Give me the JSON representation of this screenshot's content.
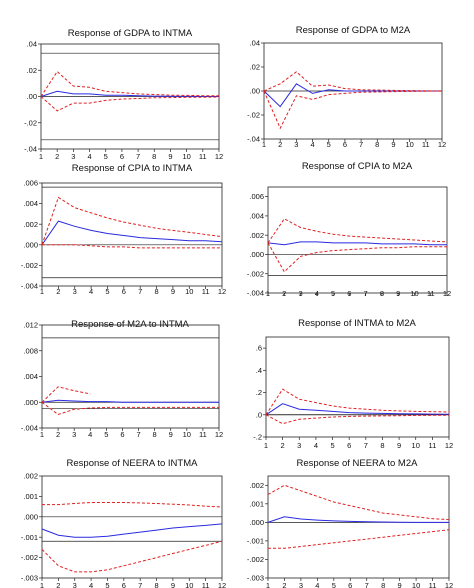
{
  "chart_data": [
    {
      "type": "line",
      "title": "Response of GDPA to INTMA",
      "x": [
        1,
        2,
        3,
        4,
        5,
        6,
        7,
        8,
        9,
        10,
        11,
        12
      ],
      "ylim": [
        -0.04,
        0.04
      ],
      "yticks": [
        ".04",
        ".02",
        ".00",
        "-.02",
        "-.04"
      ],
      "hlines": [
        0.033,
        -0.033
      ],
      "series": [
        {
          "role": "response",
          "color": "#2a2ae0",
          "values": [
            0.0,
            0.004,
            0.002,
            0.002,
            0.001,
            0.001,
            0.0005,
            0.0003,
            0.0002,
            0.0001,
            0.0,
            0.0
          ]
        },
        {
          "role": "upper band",
          "color": "#e02020",
          "values": [
            0.0,
            0.019,
            0.008,
            0.007,
            0.004,
            0.003,
            0.002,
            0.0015,
            0.001,
            0.0008,
            0.0006,
            0.0005
          ]
        },
        {
          "role": "lower band",
          "color": "#e02020",
          "values": [
            0.0,
            -0.011,
            -0.005,
            -0.005,
            -0.003,
            -0.002,
            -0.0015,
            -0.001,
            -0.0008,
            -0.0006,
            -0.0005,
            -0.0004
          ]
        }
      ]
    },
    {
      "type": "line",
      "title": "Response of GDPA to M2A",
      "x": [
        1,
        2,
        3,
        4,
        5,
        6,
        7,
        8,
        9,
        10,
        11,
        12
      ],
      "ylim": [
        -0.04,
        0.04
      ],
      "yticks": [
        ".04",
        ".02",
        ".00",
        "-.02",
        "-.04"
      ],
      "hlines": [],
      "series": [
        {
          "role": "response",
          "color": "#2a2ae0",
          "values": [
            0.0,
            -0.013,
            0.006,
            -0.002,
            0.001,
            0.0,
            0.0,
            0.0,
            0.0,
            0.0,
            0.0,
            0.0
          ]
        },
        {
          "role": "upper band",
          "color": "#e02020",
          "values": [
            0.0,
            0.006,
            0.016,
            0.004,
            0.005,
            0.002,
            0.001,
            0.0008,
            0.0005,
            0.0003,
            0.0002,
            0.0001
          ]
        },
        {
          "role": "lower band",
          "color": "#e02020",
          "values": [
            0.0,
            -0.031,
            -0.004,
            -0.007,
            -0.003,
            -0.002,
            -0.001,
            -0.0008,
            -0.0005,
            -0.0003,
            -0.0002,
            -0.0001
          ]
        }
      ]
    },
    {
      "type": "line",
      "title": "Response of CPIA to INTMA",
      "x": [
        1,
        2,
        3,
        4,
        5,
        6,
        7,
        8,
        9,
        10,
        11,
        12
      ],
      "ylim": [
        -0.004,
        0.006
      ],
      "yticks": [
        ".006",
        ".004",
        ".002",
        ".000",
        "-.002",
        "-.004"
      ],
      "hlines": [
        0.0056,
        -0.0032
      ],
      "series": [
        {
          "role": "response",
          "color": "#2a2ae0",
          "values": [
            0.0,
            0.0023,
            0.0018,
            0.0014,
            0.0011,
            0.0009,
            0.0007,
            0.0006,
            0.0005,
            0.0004,
            0.0004,
            0.0003
          ]
        },
        {
          "role": "upper band",
          "color": "#e02020",
          "values": [
            0.0,
            0.0046,
            0.0036,
            0.0031,
            0.0026,
            0.0022,
            0.0019,
            0.0016,
            0.0014,
            0.0012,
            0.001,
            0.0008
          ]
        },
        {
          "role": "lower band",
          "color": "#e02020",
          "values": [
            0.0,
            0.0,
            0.0,
            -0.0001,
            -0.0002,
            -0.0002,
            -0.0003,
            -0.0003,
            -0.0003,
            -0.0003,
            -0.0003,
            -0.0003
          ]
        }
      ]
    },
    {
      "type": "line",
      "title": "Response of CPIA to M2A",
      "x": [
        1,
        2,
        3,
        4,
        5,
        6,
        7,
        8,
        9,
        10,
        11,
        12
      ],
      "ylim": [
        -0.004,
        0.007
      ],
      "yticks": [
        ".006",
        ".004",
        ".002",
        ".000",
        "-.002",
        "-.004"
      ],
      "hlines": [
        -0.0022
      ],
      "series": [
        {
          "role": "response",
          "color": "#2a2ae0",
          "values": [
            0.0012,
            0.001,
            0.0013,
            0.0013,
            0.0012,
            0.0012,
            0.0012,
            0.0011,
            0.0011,
            0.0011,
            0.001,
            0.001
          ]
        },
        {
          "role": "upper band",
          "color": "#e02020",
          "values": [
            0.0012,
            0.0037,
            0.0028,
            0.0024,
            0.0021,
            0.0019,
            0.0018,
            0.0017,
            0.0016,
            0.0015,
            0.0014,
            0.0013
          ]
        },
        {
          "role": "lower band",
          "color": "#e02020",
          "values": [
            0.0012,
            -0.0018,
            -0.0002,
            0.0002,
            0.0004,
            0.0005,
            0.0006,
            0.0007,
            0.0007,
            0.0008,
            0.0008,
            0.0008
          ]
        }
      ]
    },
    {
      "type": "line",
      "title": "Response of M2A to INTMA",
      "x": [
        1,
        2,
        3,
        4,
        5,
        6,
        7,
        8,
        9,
        10,
        11,
        12
      ],
      "ylim": [
        -0.004,
        0.012
      ],
      "yticks": [
        ".012",
        ".008",
        ".004",
        ".000",
        "-.004"
      ],
      "hlines": [
        0.01,
        -0.001
      ],
      "series": [
        {
          "role": "response",
          "color": "#2a2ae0",
          "values": [
            0.0,
            0.0003,
            0.0002,
            0.0001,
            0.0001,
            0.0,
            0.0,
            0.0,
            0.0,
            0.0,
            0.0,
            0.0
          ]
        },
        {
          "role": "upper band",
          "color": "#e02020",
          "values": [
            0.0,
            0.0024,
            0.0018,
            0.0013,
            null,
            null,
            null,
            null,
            null,
            null,
            null,
            null
          ]
        },
        {
          "role": "lower band",
          "color": "#e02020",
          "values": [
            0.0,
            -0.0019,
            -0.0011,
            -0.0009,
            -0.0008,
            -0.0008,
            -0.0008,
            -0.0008,
            -0.0008,
            -0.0008,
            -0.0008,
            -0.0008
          ]
        }
      ]
    },
    {
      "type": "line",
      "title": "Response of INTMA to M2A",
      "x": [
        1,
        2,
        3,
        4,
        5,
        6,
        7,
        8,
        9,
        10,
        11,
        12
      ],
      "ylim": [
        -0.2,
        0.7
      ],
      "yticks": [
        ".6",
        ".4",
        ".2",
        ".0",
        "-.2"
      ],
      "hlines": [
        0.0
      ],
      "series": [
        {
          "role": "response",
          "color": "#2a2ae0",
          "values": [
            0.0,
            0.1,
            0.05,
            0.04,
            0.03,
            0.02,
            0.015,
            0.012,
            0.01,
            0.008,
            0.006,
            0.005
          ]
        },
        {
          "role": "upper band",
          "color": "#e02020",
          "values": [
            0.0,
            0.23,
            0.14,
            0.11,
            0.08,
            0.06,
            0.05,
            0.04,
            0.035,
            0.03,
            0.028,
            0.025
          ]
        },
        {
          "role": "lower band",
          "color": "#e02020",
          "values": [
            0.0,
            -0.08,
            -0.04,
            -0.03,
            -0.02,
            -0.015,
            -0.012,
            -0.01,
            -0.008,
            -0.006,
            -0.005,
            -0.004
          ]
        }
      ]
    },
    {
      "type": "line",
      "title": "Response of NEERA to INTMA",
      "x": [
        1,
        2,
        3,
        4,
        5,
        6,
        7,
        8,
        9,
        10,
        11,
        12
      ],
      "ylim": [
        -0.003,
        0.002
      ],
      "yticks": [
        ".002",
        ".001",
        ".000",
        "-.001",
        "-.002",
        "-.003"
      ],
      "hlines": [
        -0.0012
      ],
      "series": [
        {
          "role": "response",
          "color": "#2a2ae0",
          "values": [
            -0.0006,
            -0.0009,
            -0.001,
            -0.001,
            -0.00095,
            -0.00085,
            -0.00075,
            -0.00065,
            -0.00055,
            -0.00048,
            -0.00042,
            -0.00035
          ]
        },
        {
          "role": "upper band",
          "color": "#e02020",
          "values": [
            0.0006,
            0.0006,
            0.00065,
            0.0007,
            0.0007,
            0.0007,
            0.00068,
            0.00065,
            0.00062,
            0.00058,
            0.00052,
            0.00048
          ]
        },
        {
          "role": "lower band",
          "color": "#e02020",
          "values": [
            -0.0016,
            -0.0024,
            -0.0027,
            -0.0027,
            -0.0026,
            -0.0024,
            -0.0022,
            -0.002,
            -0.0018,
            -0.0016,
            -0.0014,
            -0.0012
          ]
        }
      ]
    },
    {
      "type": "line",
      "title": "Response of NEERA to M2A",
      "x": [
        1,
        2,
        3,
        4,
        5,
        6,
        7,
        8,
        9,
        10,
        11,
        12
      ],
      "ylim": [
        -0.003,
        0.0025
      ],
      "yticks": [
        ".002",
        ".001",
        ".000",
        "-.001",
        "-.002",
        "-.003"
      ],
      "hlines": [],
      "series": [
        {
          "role": "response",
          "color": "#2a2ae0",
          "values": [
            0.0,
            0.0003,
            0.00018,
            0.00012,
            8e-05,
            5e-05,
            3e-05,
            2e-05,
            1e-05,
            0.0,
            0.0,
            0.0
          ]
        },
        {
          "role": "upper band",
          "color": "#e02020",
          "values": [
            0.0015,
            0.002,
            0.0017,
            0.0014,
            0.0011,
            0.0009,
            0.0007,
            0.0005,
            0.0004,
            0.0003,
            0.0002,
            0.00015
          ]
        },
        {
          "role": "lower band",
          "color": "#e02020",
          "values": [
            -0.0014,
            -0.0014,
            -0.0013,
            -0.0012,
            -0.0011,
            -0.001,
            -0.0009,
            -0.0008,
            -0.0007,
            -0.0006,
            -0.0005,
            -0.0004
          ]
        }
      ]
    }
  ]
}
